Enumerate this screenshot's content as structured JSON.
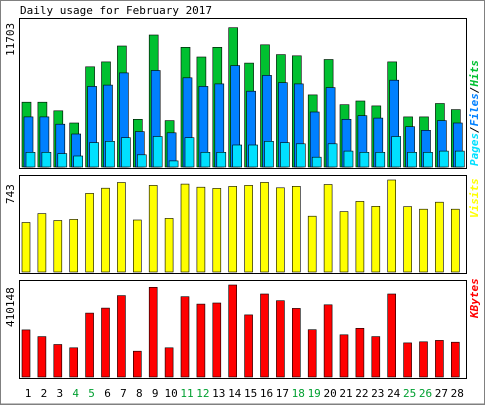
{
  "title": "Daily usage for February 2017",
  "colors": {
    "hits": "#00c030",
    "files": "#0080ff",
    "pages": "#00e0ff",
    "visits": "#ffff00",
    "kbytes": "#ff0000",
    "weekend_day": "#00a030",
    "weekday": "#000000"
  },
  "chart_data": [
    {
      "type": "bar",
      "ylabel_top": "11703",
      "legend": [
        "Pages",
        "Files",
        "Hits"
      ],
      "legend_separator": "/",
      "ylim": [
        0,
        11703
      ],
      "categories": [
        "1",
        "2",
        "3",
        "4",
        "5",
        "6",
        "7",
        "8",
        "9",
        "10",
        "11",
        "12",
        "13",
        "14",
        "15",
        "16",
        "17",
        "18",
        "19",
        "20",
        "21",
        "22",
        "23",
        "24",
        "25",
        "26",
        "27",
        "28"
      ],
      "series": [
        {
          "name": "Hits",
          "values": [
            5300,
            5300,
            4600,
            3600,
            8200,
            8600,
            9900,
            3900,
            10800,
            3800,
            9800,
            9000,
            9800,
            11400,
            8500,
            10000,
            9200,
            9100,
            5900,
            8800,
            5100,
            5400,
            5000,
            8600,
            4100,
            4100,
            5200,
            4700
          ]
        },
        {
          "name": "Files",
          "values": [
            4100,
            4100,
            3500,
            2700,
            6600,
            6700,
            7700,
            2900,
            7900,
            2800,
            7300,
            6600,
            6800,
            8300,
            6200,
            7500,
            6900,
            6800,
            4500,
            6500,
            3900,
            4200,
            4000,
            7100,
            3300,
            3000,
            3800,
            3600
          ]
        },
        {
          "name": "Pages",
          "values": [
            1200,
            1200,
            1100,
            900,
            2000,
            2100,
            2400,
            1000,
            2500,
            500,
            2400,
            1200,
            1200,
            1800,
            1800,
            2100,
            2000,
            1900,
            800,
            1900,
            1300,
            1200,
            1200,
            2500,
            1200,
            1200,
            1300,
            1300
          ]
        }
      ]
    },
    {
      "type": "bar",
      "ylabel_top": "743",
      "legend": [
        "Visits"
      ],
      "ylim": [
        0,
        743
      ],
      "categories": [
        "1",
        "2",
        "3",
        "4",
        "5",
        "6",
        "7",
        "8",
        "9",
        "10",
        "11",
        "12",
        "13",
        "14",
        "15",
        "16",
        "17",
        "18",
        "19",
        "20",
        "21",
        "22",
        "23",
        "24",
        "25",
        "26",
        "27",
        "28"
      ],
      "series": [
        {
          "name": "Visits",
          "values": [
            400,
            472,
            416,
            425,
            635,
            677,
            723,
            420,
            699,
            433,
            710,
            685,
            675,
            691,
            699,
            724,
            680,
            692,
            451,
            707,
            488,
            570,
            531,
            743,
            528,
            507,
            564,
            507
          ]
        }
      ]
    },
    {
      "type": "bar",
      "ylabel_top": "410148",
      "legend": [
        "KBytes"
      ],
      "ylim": [
        0,
        410148
      ],
      "categories": [
        "1",
        "2",
        "3",
        "4",
        "5",
        "6",
        "7",
        "8",
        "9",
        "10",
        "11",
        "12",
        "13",
        "14",
        "15",
        "16",
        "17",
        "18",
        "19",
        "20",
        "21",
        "22",
        "23",
        "24",
        "25",
        "26",
        "27",
        "28"
      ],
      "series": [
        {
          "name": "KBytes",
          "values": [
            210000,
            180000,
            145000,
            130000,
            285000,
            307000,
            363000,
            115000,
            400000,
            130000,
            358000,
            325000,
            330000,
            410148,
            277000,
            370000,
            340000,
            306000,
            211000,
            322000,
            188000,
            217000,
            180000,
            370000,
            152000,
            157000,
            163000,
            155000
          ]
        }
      ]
    }
  ],
  "days": [
    "1",
    "2",
    "3",
    "4",
    "5",
    "6",
    "7",
    "8",
    "9",
    "10",
    "11",
    "12",
    "13",
    "14",
    "15",
    "16",
    "17",
    "18",
    "19",
    "20",
    "21",
    "22",
    "23",
    "24",
    "25",
    "26",
    "27",
    "28"
  ],
  "weekend_days": [
    "4",
    "5",
    "11",
    "12",
    "18",
    "19",
    "25",
    "26"
  ]
}
